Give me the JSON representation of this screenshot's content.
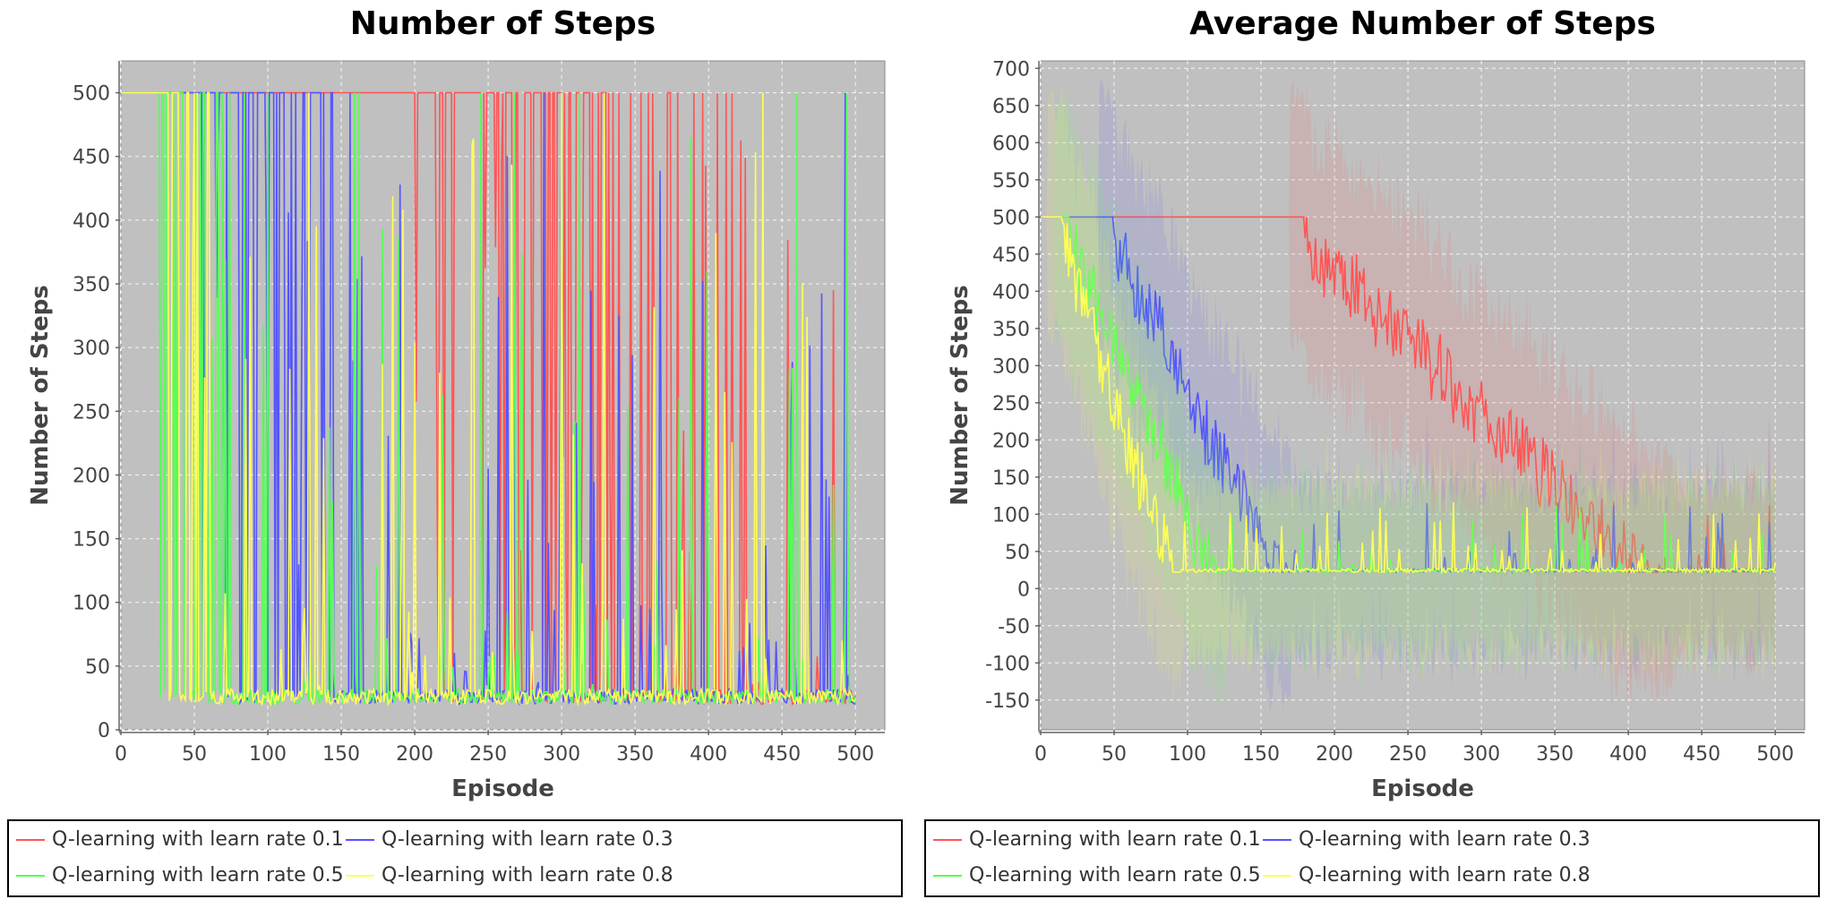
{
  "chart_data": [
    {
      "type": "line",
      "title": "Number of Steps",
      "xlabel": "Episode",
      "ylabel": "Number of Steps",
      "xlim": [
        0,
        520
      ],
      "ylim": [
        0,
        525
      ],
      "xticks": [
        "0",
        "50",
        "100",
        "150",
        "200",
        "250",
        "300",
        "350",
        "400",
        "450",
        "500"
      ],
      "yticks": [
        "0",
        "50",
        "100",
        "150",
        "200",
        "250",
        "300",
        "350",
        "400",
        "450",
        "500"
      ],
      "grid": true,
      "legend_position": "bottom",
      "series": [
        {
          "name": "Q-learning with learn rate 0.1",
          "color": "#ff5555",
          "max": 500,
          "floor": 20,
          "drop_start_episode": 200,
          "converge_episode": 430
        },
        {
          "name": "Q-learning with learn rate 0.3",
          "color": "#5555ff",
          "max": 500,
          "floor": 20,
          "drop_start_episode": 50,
          "converge_episode": 175
        },
        {
          "name": "Q-learning with learn rate 0.5",
          "color": "#55ff55",
          "max": 500,
          "floor": 20,
          "drop_start_episode": 15,
          "converge_episode": 105
        },
        {
          "name": "Q-learning with learn rate 0.8",
          "color": "#ffff55",
          "max": 500,
          "floor": 20,
          "drop_start_episode": 20,
          "converge_episode": 75
        }
      ]
    },
    {
      "type": "line",
      "title": "Average Number of Steps",
      "xlabel": "Episode",
      "ylabel": "Number of Steps",
      "xlim": [
        0,
        520
      ],
      "ylim": [
        -190,
        710
      ],
      "xticks": [
        "0",
        "50",
        "100",
        "150",
        "200",
        "250",
        "300",
        "350",
        "400",
        "450",
        "500"
      ],
      "yticks": [
        "-150",
        "-100",
        "-50",
        "0",
        "50",
        "100",
        "150",
        "200",
        "250",
        "300",
        "350",
        "400",
        "450",
        "500",
        "550",
        "600",
        "650",
        "700"
      ],
      "grid": true,
      "legend_position": "bottom",
      "series": [
        {
          "name": "Q-learning with learn rate 0.1",
          "color": "#ff5555",
          "start": 500,
          "end": 22,
          "transition_start_episode": 180,
          "transition_end_episode": 430
        },
        {
          "name": "Q-learning with learn rate 0.3",
          "color": "#5555ff",
          "start": 500,
          "end": 22,
          "transition_start_episode": 50,
          "transition_end_episode": 170
        },
        {
          "name": "Q-learning with learn rate 0.5",
          "color": "#55ff55",
          "start": 500,
          "end": 22,
          "transition_start_episode": 20,
          "transition_end_episode": 125
        },
        {
          "name": "Q-learning with learn rate 0.8",
          "color": "#ffff55",
          "start": 500,
          "end": 22,
          "transition_start_episode": 15,
          "transition_end_episode": 95
        }
      ]
    }
  ]
}
